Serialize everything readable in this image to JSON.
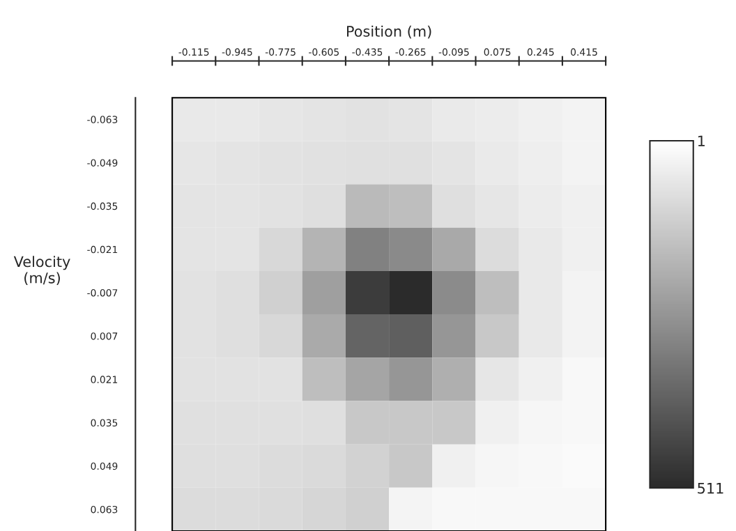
{
  "chart_data": {
    "type": "heatmap",
    "xlabel": "Position (m)",
    "ylabel": "Velocity\n(m/s)",
    "categories": [
      "-0.115",
      "-0.945",
      "-0.775",
      "-0.605",
      "-0.435",
      "-0.265",
      "-0.095",
      "0.075",
      "0.245",
      "0.415"
    ],
    "y_categories": [
      "-0.063",
      "-0.049",
      "-0.035",
      "-0.021",
      "-0.007",
      "0.007",
      "0.021",
      "0.035",
      "0.049",
      "0.063"
    ],
    "cells": [
      [
        56,
        56,
        61,
        66,
        71,
        68,
        52,
        47,
        37,
        32
      ],
      [
        61,
        66,
        71,
        73,
        76,
        76,
        66,
        52,
        42,
        30
      ],
      [
        66,
        66,
        71,
        80,
        167,
        157,
        80,
        61,
        47,
        37
      ],
      [
        66,
        66,
        95,
        181,
        302,
        282,
        210,
        85,
        56,
        37
      ],
      [
        71,
        80,
        114,
        234,
        470,
        511,
        278,
        157,
        56,
        32
      ],
      [
        71,
        80,
        95,
        206,
        374,
        386,
        254,
        133,
        56,
        32
      ],
      [
        71,
        71,
        71,
        157,
        218,
        254,
        193,
        61,
        37,
        18
      ],
      [
        76,
        76,
        76,
        80,
        133,
        133,
        133,
        37,
        23,
        18
      ],
      [
        80,
        80,
        85,
        90,
        109,
        133,
        37,
        23,
        18,
        13
      ],
      [
        85,
        85,
        90,
        100,
        114,
        27,
        18,
        18,
        18,
        18
      ]
    ],
    "clim": [
      1,
      511
    ],
    "cticks": [
      1,
      511
    ],
    "grid": false
  }
}
